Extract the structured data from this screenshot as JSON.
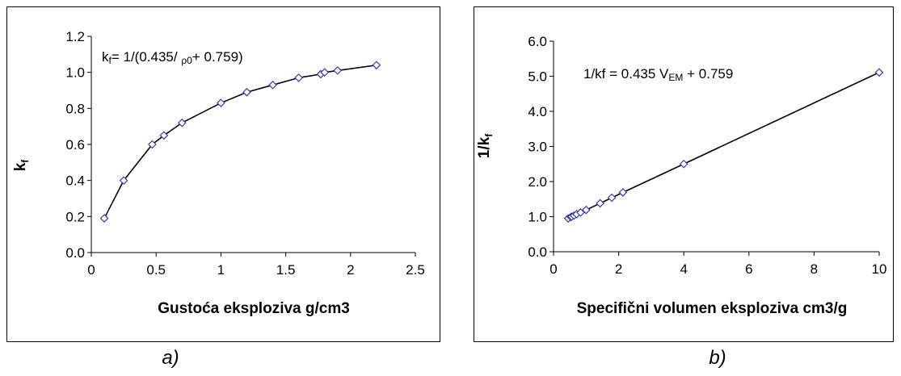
{
  "chart_data": [
    {
      "type": "line",
      "caption": "a)",
      "xlabel": "Gustoća eksploziva g/cm3",
      "ylabel_main": "k",
      "ylabel_sub": "f",
      "annotation": {
        "pre": "k",
        "sub1": "f",
        "mid": "= 1/(0.435/ ",
        "rho": "ρ",
        "sub2": "0",
        "post": "+ 0.759)"
      },
      "xlim": [
        0,
        2.5
      ],
      "ylim": [
        0,
        1.2
      ],
      "xticks": [
        "0",
        "0.5",
        "1",
        "1.5",
        "2",
        "2.5"
      ],
      "yticks": [
        "0.0",
        "0.2",
        "0.4",
        "0.6",
        "0.8",
        "1.0",
        "1.2"
      ],
      "grid": false,
      "marker": "open-diamond",
      "series": [
        {
          "x": [
            0.1,
            0.25,
            0.47,
            0.56,
            0.7,
            1.0,
            1.2,
            1.4,
            1.6,
            1.77,
            1.8,
            1.9,
            2.2
          ],
          "y": [
            0.19,
            0.4,
            0.6,
            0.65,
            0.72,
            0.83,
            0.89,
            0.93,
            0.97,
            0.99,
            1.0,
            1.01,
            1.04
          ]
        }
      ],
      "colors": {
        "marker": "#3a3ab0",
        "line": "#000000"
      }
    },
    {
      "type": "line",
      "caption": "b)",
      "xlabel": "Specifični volumen eksploziva cm3/g",
      "ylabel_main": "1/k",
      "ylabel_sub": "f",
      "annotation": {
        "pre": "1/kf = 0.435 V",
        "sub1": "EM",
        "post": " + 0.759"
      },
      "xlim": [
        0,
        10
      ],
      "ylim": [
        0,
        6
      ],
      "xticks": [
        "0",
        "2",
        "4",
        "6",
        "8",
        "10"
      ],
      "yticks": [
        "0.0",
        "1.0",
        "2.0",
        "3.0",
        "4.0",
        "5.0",
        "6.0"
      ],
      "grid": false,
      "marker": "open-diamond",
      "series": [
        {
          "x": [
            0.45,
            0.53,
            0.56,
            0.63,
            0.71,
            0.83,
            1.0,
            1.43,
            1.79,
            2.13,
            4.0,
            10.0
          ],
          "y": [
            0.95,
            0.99,
            1.0,
            1.03,
            1.07,
            1.12,
            1.19,
            1.38,
            1.54,
            1.69,
            2.5,
            5.11
          ]
        }
      ],
      "colors": {
        "marker": "#3a3ab0",
        "line": "#000000"
      }
    }
  ]
}
